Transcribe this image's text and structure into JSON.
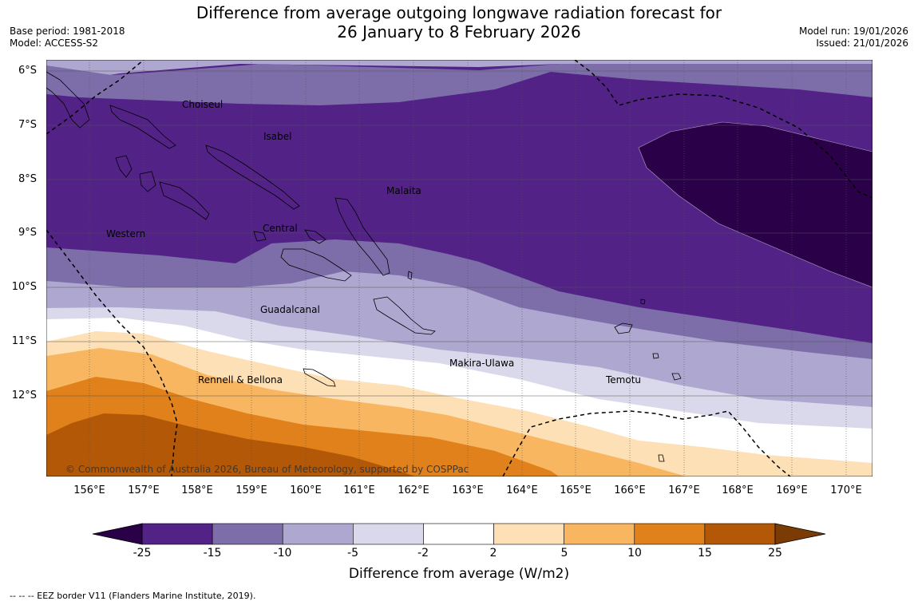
{
  "header": {
    "title_line1": "Difference from average outgoing longwave radiation forecast for",
    "title_line2": "26 January to 8 February 2026",
    "base_period": "Base period: 1981-2018",
    "model": "Model: ACCESS-S2",
    "model_run": "Model run: 19/01/2026",
    "issued": "Issued: 21/01/2026"
  },
  "map": {
    "latitude_labels": [
      "6°S",
      "7°S",
      "8°S",
      "9°S",
      "10°S",
      "11°S",
      "12°S"
    ],
    "longitude_labels": [
      "156°E",
      "157°E",
      "158°E",
      "159°E",
      "160°E",
      "161°E",
      "162°E",
      "163°E",
      "164°E",
      "165°E",
      "166°E",
      "167°E",
      "168°E",
      "169°E",
      "170°E"
    ],
    "places": {
      "choiseul": "Choiseul",
      "isabel": "Isabel",
      "malaita": "Malaita",
      "western": "Western",
      "central": "Central",
      "guadalcanal": "Guadalcanal",
      "makira": "Makira-Ulawa",
      "temotu": "Temotu",
      "rennell": "Rennell & Bellona"
    },
    "copyright": "© Commonwealth of Australia 2026, Bureau of Meteorology, supported by COSPPac"
  },
  "colorbar": {
    "ticks": [
      "-25",
      "-15",
      "-10",
      "-5",
      "-2",
      "2",
      "5",
      "10",
      "15",
      "25"
    ],
    "colors": [
      "#2a0048",
      "#522287",
      "#7d6eaa",
      "#aea8d0",
      "#d9d9eb",
      "#ffffff",
      "#fde0b6",
      "#f9b661",
      "#e0811b",
      "#b35806",
      "#7a3b04"
    ],
    "title": "Difference from average (W/m2)"
  },
  "legend": {
    "eez": "--  --  -- EEZ border V11 (Flanders Marine Institute, 2019)."
  }
}
